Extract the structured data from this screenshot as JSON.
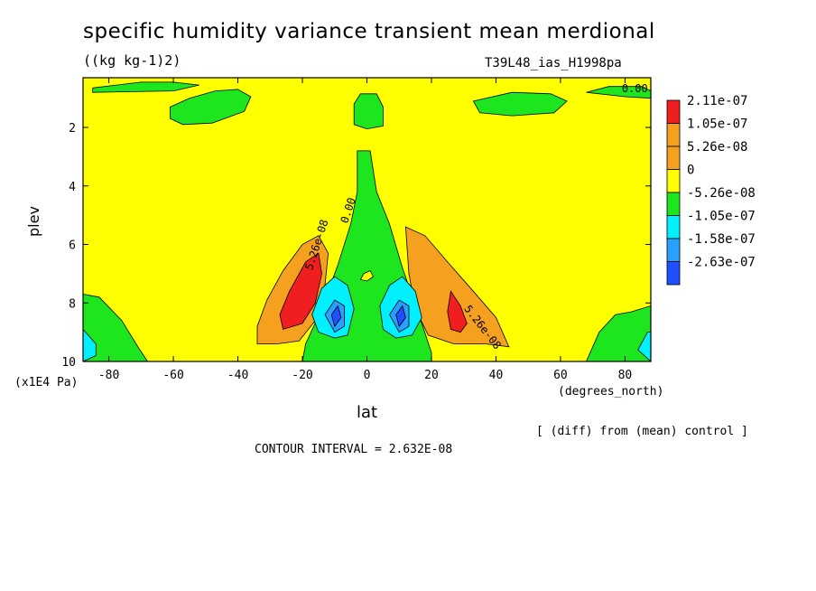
{
  "title": "specific humidity variance transient mean merdional",
  "units": "((kg kg-1)2)",
  "experiment": "T39L48_ias_H1998pa",
  "note": "[ (diff) from (mean) control ]",
  "contour_interval": "CONTOUR INTERVAL = 2.632E-08",
  "chart_data": {
    "type": "heatmap",
    "title": "specific humidity variance transient mean merdional",
    "xlabel": "lat",
    "x_units": "(degrees_north)",
    "ylabel": "plev",
    "y_units": "(x1E4 Pa)",
    "xlim": [
      -88,
      88
    ],
    "ylim": [
      10,
      0.3
    ],
    "x_ticks": [
      -80,
      -60,
      -40,
      -20,
      0,
      20,
      40,
      60,
      80
    ],
    "y_ticks": [
      2,
      4,
      6,
      8,
      10
    ],
    "colors": {
      "red": "#f01e1e",
      "orange": "#f5a01e",
      "yellow": "#ffff00",
      "green": "#1ee61e",
      "cyan": "#00f0ff",
      "lightblue": "#28a0ff",
      "blue": "#1e50ff"
    },
    "legend": {
      "placement": "right",
      "entries": [
        {
          "label": "2.11e-07",
          "color": "#f01e1e"
        },
        {
          "label": "1.05e-07",
          "color": "#f5a01e"
        },
        {
          "label": "5.26e-08",
          "color": "#f5a01e"
        },
        {
          "label": "0",
          "color": "#ffff00"
        },
        {
          "label": "-5.26e-08",
          "color": "#1ee61e"
        },
        {
          "label": "-1.05e-07",
          "color": "#00f0ff"
        },
        {
          "label": "-1.58e-07",
          "color": "#28a0ff"
        },
        {
          "label": "-2.63e-07",
          "color": "#1e50ff"
        }
      ]
    },
    "contour_labels": [
      {
        "text": "0.00",
        "lat": 79,
        "plev": 0.8
      },
      {
        "text": "0.00",
        "lat": -6,
        "plev": 5.3
      },
      {
        "text": "5.26e-08",
        "lat": -17,
        "plev": 6.9
      },
      {
        "text": "5.26e-08",
        "lat": 30,
        "plev": 8.2
      }
    ],
    "regions": [
      {
        "name": "yellow-field",
        "color": "yellow",
        "polygon": [
          [
            -88,
            0.3
          ],
          [
            88,
            0.3
          ],
          [
            88,
            10
          ],
          [
            -88,
            10
          ]
        ]
      },
      {
        "name": "green-top-left-strip",
        "color": "green",
        "polygon": [
          [
            -85,
            0.65
          ],
          [
            -70,
            0.45
          ],
          [
            -60,
            0.45
          ],
          [
            -52,
            0.55
          ],
          [
            -60,
            0.75
          ],
          [
            -85,
            0.8
          ]
        ]
      },
      {
        "name": "green-top-left-blob",
        "color": "green",
        "polygon": [
          [
            -61,
            1.3
          ],
          [
            -55,
            1.0
          ],
          [
            -47,
            0.75
          ],
          [
            -40,
            0.7
          ],
          [
            -36,
            0.95
          ],
          [
            -38,
            1.45
          ],
          [
            -48,
            1.85
          ],
          [
            -57,
            1.9
          ],
          [
            -61,
            1.7
          ]
        ]
      },
      {
        "name": "green-top-center-blob",
        "color": "green",
        "polygon": [
          [
            -4,
            1.2
          ],
          [
            -2,
            0.85
          ],
          [
            3,
            0.85
          ],
          [
            5,
            1.3
          ],
          [
            5,
            1.95
          ],
          [
            0,
            2.05
          ],
          [
            -4,
            1.9
          ]
        ]
      },
      {
        "name": "green-top-right-blob",
        "color": "green",
        "polygon": [
          [
            33,
            1.1
          ],
          [
            45,
            0.8
          ],
          [
            57,
            0.85
          ],
          [
            62,
            1.1
          ],
          [
            58,
            1.5
          ],
          [
            45,
            1.6
          ],
          [
            35,
            1.5
          ]
        ]
      },
      {
        "name": "green-top-right-strip",
        "color": "green",
        "polygon": [
          [
            68,
            0.8
          ],
          [
            75,
            0.6
          ],
          [
            85,
            0.6
          ],
          [
            88,
            0.75
          ],
          [
            88,
            1.0
          ],
          [
            80,
            0.95
          ]
        ]
      },
      {
        "name": "green-central-plume",
        "color": "green",
        "polygon": [
          [
            -3,
            2.8
          ],
          [
            1,
            2.8
          ],
          [
            3,
            4.2
          ],
          [
            7,
            5.3
          ],
          [
            11,
            6.8
          ],
          [
            17,
            8.7
          ],
          [
            20,
            9.7
          ],
          [
            20,
            10
          ],
          [
            -20,
            10
          ],
          [
            -19,
            9.4
          ],
          [
            -14,
            8.2
          ],
          [
            -9,
            6.7
          ],
          [
            -5,
            5.3
          ],
          [
            -3,
            4.2
          ]
        ]
      },
      {
        "name": "orange-left-lobe",
        "color": "orange",
        "polygon": [
          [
            -34,
            8.8
          ],
          [
            -31,
            7.9
          ],
          [
            -26,
            6.9
          ],
          [
            -20,
            6.0
          ],
          [
            -15,
            5.7
          ],
          [
            -12,
            6.3
          ],
          [
            -13,
            7.4
          ],
          [
            -16,
            8.6
          ],
          [
            -21,
            9.3
          ],
          [
            -28,
            9.4
          ],
          [
            -34,
            9.4
          ]
        ]
      },
      {
        "name": "red-left-lobe",
        "color": "red",
        "polygon": [
          [
            -27,
            8.4
          ],
          [
            -24,
            7.6
          ],
          [
            -19,
            6.6
          ],
          [
            -15,
            6.3
          ],
          [
            -14,
            7.0
          ],
          [
            -16,
            8.0
          ],
          [
            -20,
            8.7
          ],
          [
            -26,
            8.9
          ]
        ]
      },
      {
        "name": "orange-right-lobe",
        "color": "orange",
        "polygon": [
          [
            12,
            5.4
          ],
          [
            18,
            5.7
          ],
          [
            25,
            6.6
          ],
          [
            33,
            7.6
          ],
          [
            40,
            8.5
          ],
          [
            44,
            9.5
          ],
          [
            37,
            9.4
          ],
          [
            27,
            9.4
          ],
          [
            19,
            9.1
          ],
          [
            15,
            8.2
          ],
          [
            13,
            7.0
          ]
        ]
      },
      {
        "name": "red-right-lobe",
        "color": "red",
        "polygon": [
          [
            26,
            7.6
          ],
          [
            29,
            8.1
          ],
          [
            31,
            8.7
          ],
          [
            29,
            9.0
          ],
          [
            26,
            8.9
          ],
          [
            25,
            8.3
          ]
        ]
      },
      {
        "name": "cyan-left-core",
        "color": "cyan",
        "polygon": [
          [
            -17,
            8.4
          ],
          [
            -14,
            7.5
          ],
          [
            -10,
            7.1
          ],
          [
            -6,
            7.4
          ],
          [
            -4,
            8.2
          ],
          [
            -6,
            9.1
          ],
          [
            -10,
            9.2
          ],
          [
            -15,
            9.0
          ]
        ]
      },
      {
        "name": "lightblue-left-core",
        "color": "lightblue",
        "polygon": [
          [
            -13,
            8.4
          ],
          [
            -10,
            7.9
          ],
          [
            -7,
            8.1
          ],
          [
            -7,
            8.8
          ],
          [
            -10,
            9.0
          ]
        ]
      },
      {
        "name": "blue-left-core",
        "color": "blue",
        "polygon": [
          [
            -11,
            8.4
          ],
          [
            -9,
            8.1
          ],
          [
            -8,
            8.5
          ],
          [
            -10,
            8.8
          ]
        ]
      },
      {
        "name": "cyan-right-core",
        "color": "cyan",
        "polygon": [
          [
            4,
            8.1
          ],
          [
            7,
            7.4
          ],
          [
            11,
            7.1
          ],
          [
            15,
            7.6
          ],
          [
            17,
            8.5
          ],
          [
            14,
            9.1
          ],
          [
            9,
            9.2
          ],
          [
            5,
            8.9
          ]
        ]
      },
      {
        "name": "lightblue-right-core",
        "color": "lightblue",
        "polygon": [
          [
            7,
            8.4
          ],
          [
            10,
            7.9
          ],
          [
            13,
            8.1
          ],
          [
            13,
            8.8
          ],
          [
            10,
            9.0
          ]
        ]
      },
      {
        "name": "blue-right-core",
        "color": "blue",
        "polygon": [
          [
            9,
            8.4
          ],
          [
            11,
            8.1
          ],
          [
            12,
            8.5
          ],
          [
            10,
            8.8
          ]
        ]
      },
      {
        "name": "green-bottom-left-corner",
        "color": "green",
        "polygon": [
          [
            -88,
            7.7
          ],
          [
            -83,
            7.8
          ],
          [
            -76,
            8.6
          ],
          [
            -71,
            9.5
          ],
          [
            -68,
            10
          ],
          [
            -88,
            10
          ]
        ]
      },
      {
        "name": "cyan-bottom-left-corner",
        "color": "cyan",
        "polygon": [
          [
            -88,
            8.9
          ],
          [
            -84,
            9.4
          ],
          [
            -84,
            9.8
          ],
          [
            -88,
            10
          ]
        ]
      },
      {
        "name": "green-bottom-right-corner",
        "color": "green",
        "polygon": [
          [
            68,
            10
          ],
          [
            72,
            9.0
          ],
          [
            77,
            8.4
          ],
          [
            82,
            8.3
          ],
          [
            88,
            8.1
          ],
          [
            88,
            10
          ]
        ]
      },
      {
        "name": "cyan-bottom-right-corner",
        "color": "cyan",
        "polygon": [
          [
            84,
            9.6
          ],
          [
            87,
            9.0
          ],
          [
            88,
            9.0
          ],
          [
            88,
            10
          ]
        ]
      },
      {
        "name": "yellow-center-hole",
        "color": "yellow",
        "polygon": [
          [
            -1,
            7.0
          ],
          [
            1,
            6.9
          ],
          [
            2,
            7.1
          ],
          [
            0,
            7.25
          ],
          [
            -2,
            7.2
          ]
        ]
      }
    ]
  }
}
